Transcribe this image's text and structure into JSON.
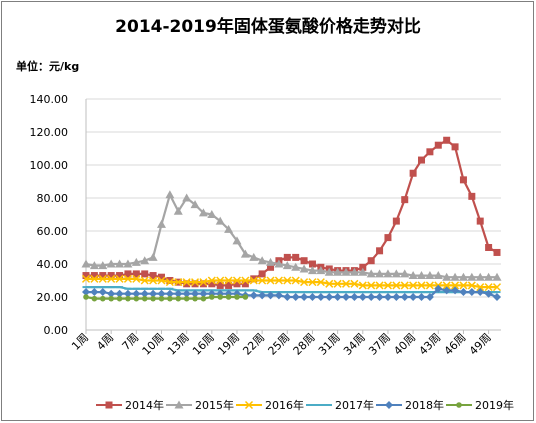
{
  "chart_data": {
    "type": "line",
    "title": "2014-2019年固体蛋氨酸价格走势对比",
    "unit_label": "单位：元/kg",
    "ylim": [
      0,
      140
    ],
    "yticks": [
      "0.00",
      "20.00",
      "40.00",
      "60.00",
      "80.00",
      "100.00",
      "120.00",
      "140.00"
    ],
    "x_tick_labels": [
      "1周",
      "4周",
      "7周",
      "10周",
      "13周",
      "16周",
      "19周",
      "22周",
      "25周",
      "28周",
      "31周",
      "34周",
      "37周",
      "40周",
      "43周",
      "46周",
      "49周"
    ],
    "grid": "horizontal",
    "legend_position": "bottom",
    "series": [
      {
        "name": "2014年",
        "color": "#c0504d",
        "marker": "square",
        "values": [
          33,
          33,
          33,
          33,
          33,
          34,
          34,
          34,
          33,
          32,
          30,
          29,
          28,
          28,
          28,
          28,
          27,
          27,
          28,
          28,
          31,
          34,
          38,
          42,
          44,
          44,
          42,
          40,
          38,
          37,
          36,
          36,
          36,
          38,
          42,
          48,
          56,
          66,
          79,
          95,
          103,
          108,
          112,
          115,
          111,
          91,
          81,
          66,
          50,
          47
        ]
      },
      {
        "name": "2015年",
        "color": "#a5a5a5",
        "marker": "triangle",
        "values": [
          40,
          39,
          39,
          40,
          40,
          40,
          41,
          42,
          44,
          64,
          82,
          72,
          80,
          76,
          71,
          70,
          66,
          61,
          54,
          46,
          44,
          42,
          41,
          40,
          39,
          38,
          37,
          36,
          36,
          35,
          35,
          35,
          35,
          35,
          34,
          34,
          34,
          34,
          34,
          33,
          33,
          33,
          33,
          32,
          32,
          32,
          32,
          32,
          32,
          32
        ]
      },
      {
        "name": "2016年",
        "color": "#ffc000",
        "marker": "x",
        "values": [
          31,
          31,
          31,
          31,
          31,
          31,
          31,
          30,
          30,
          30,
          29,
          29,
          29,
          29,
          29,
          30,
          30,
          30,
          30,
          30,
          30,
          30,
          30,
          30,
          30,
          30,
          29,
          29,
          29,
          28,
          28,
          28,
          28,
          27,
          27,
          27,
          27,
          27,
          27,
          27,
          27,
          27,
          27,
          27,
          27,
          27,
          27,
          26,
          26,
          26
        ]
      },
      {
        "name": "2017年",
        "color": "#4bacc6",
        "marker": "line",
        "values": [
          26,
          26,
          26,
          26,
          26,
          25,
          25,
          25,
          25,
          25,
          25,
          24,
          24,
          24,
          24,
          24,
          24,
          24,
          24,
          24,
          24,
          23,
          23,
          23,
          23,
          23,
          23,
          23,
          23,
          23,
          23,
          23,
          23,
          23,
          23,
          23,
          23,
          23,
          23,
          23,
          23,
          23,
          23,
          23,
          23,
          23,
          23,
          23,
          23,
          23
        ]
      },
      {
        "name": "2018年",
        "color": "#4f81bd",
        "marker": "diamond",
        "values": [
          23,
          23,
          23,
          22,
          22,
          22,
          22,
          22,
          22,
          22,
          22,
          22,
          22,
          22,
          22,
          22,
          22,
          22,
          22,
          21,
          21,
          21,
          21,
          21,
          20,
          20,
          20,
          20,
          20,
          20,
          20,
          20,
          20,
          20,
          20,
          20,
          20,
          20,
          20,
          20,
          20,
          20,
          25,
          24,
          24,
          23,
          23,
          23,
          22,
          20
        ]
      },
      {
        "name": "2019年",
        "color": "#77a33e",
        "marker": "dot",
        "values": [
          20,
          19,
          19,
          19,
          19,
          19,
          19,
          19,
          19,
          19,
          19,
          19,
          19,
          19,
          19,
          20,
          20,
          20,
          20,
          20
        ]
      }
    ]
  }
}
